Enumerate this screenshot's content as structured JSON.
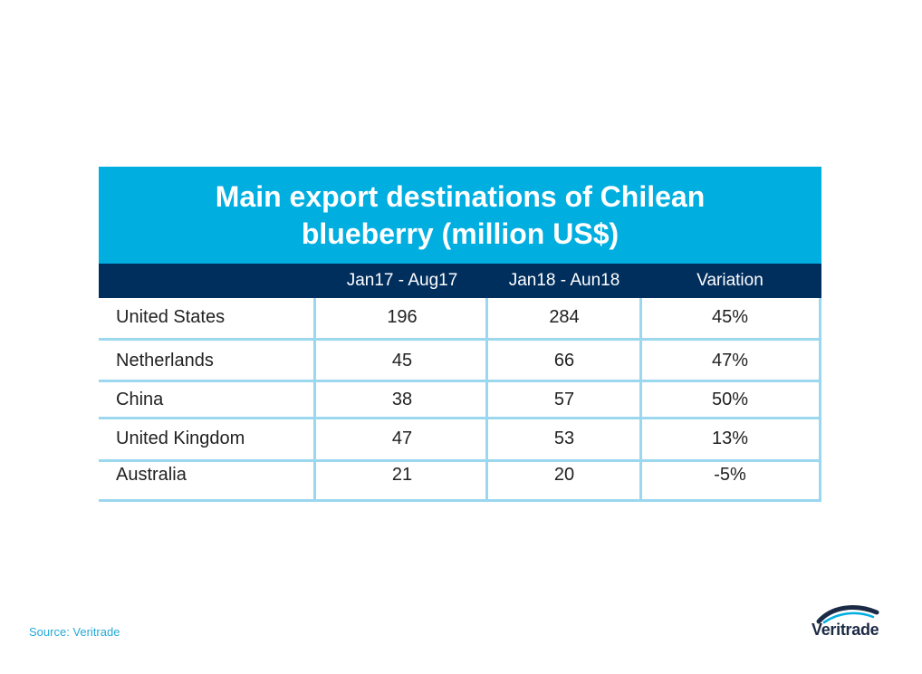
{
  "chart_data": {
    "type": "table",
    "title_lines": [
      "Main export destinations of Chilean",
      "blueberry (million US$)"
    ],
    "columns": [
      "",
      "Jan17 - Aug17",
      "Jan18 - Aun18",
      "Variation"
    ],
    "rows": [
      {
        "country": "United States",
        "v2017": "196",
        "v2018": "284",
        "variation": "45%"
      },
      {
        "country": "Netherlands",
        "v2017": "45",
        "v2018": "66",
        "variation": "47%"
      },
      {
        "country": "China",
        "v2017": "38",
        "v2018": "57",
        "variation": "50%"
      },
      {
        "country": "United Kingdom",
        "v2017": "47",
        "v2018": "53",
        "variation": "13%"
      },
      {
        "country": "Australia",
        "v2017": "21",
        "v2018": "20",
        "variation": "-5%"
      }
    ]
  },
  "source": "Source: Veritrade",
  "logo_text": "Veritrade",
  "colors": {
    "title_band": "#00aee0",
    "header_band": "#002e5d",
    "grid": "#9bd7ee",
    "source_text": "#27a9d6",
    "logo_dark": "#1b2a45",
    "logo_accent": "#00aee0"
  }
}
